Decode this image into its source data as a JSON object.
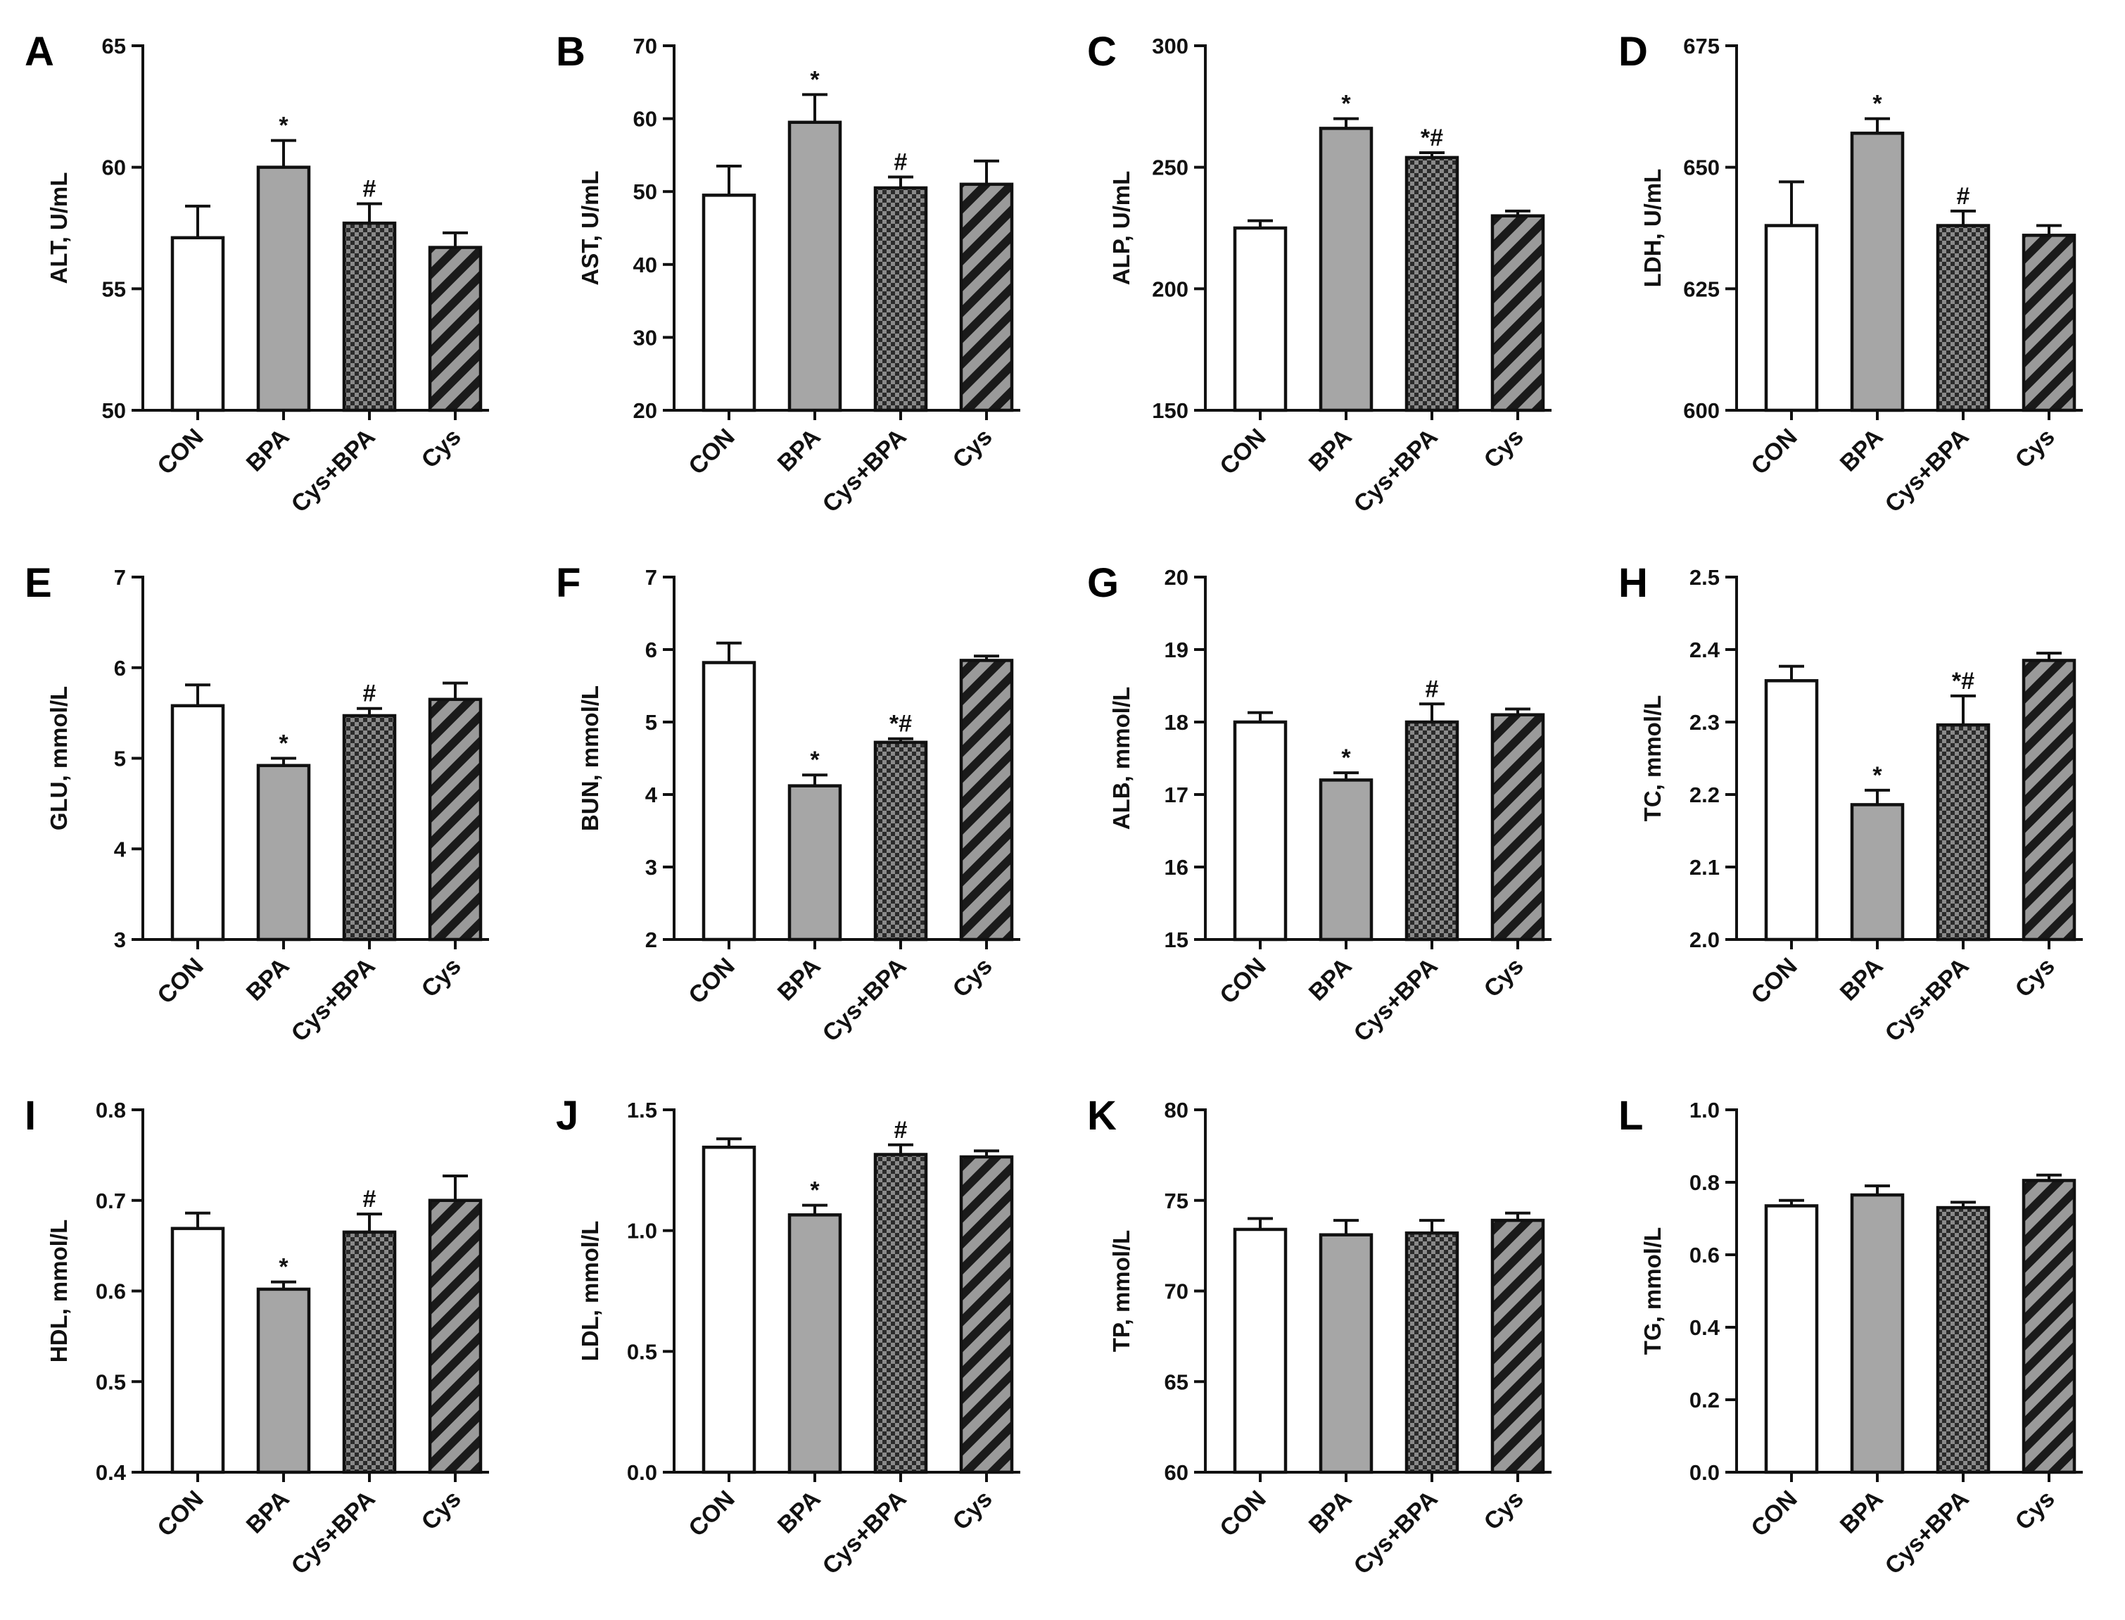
{
  "styles": {
    "CON": "white",
    "BPA": "gray",
    "Cys+BPA": "checker",
    "Cys": "hatch"
  },
  "colors": {
    "bar_gray": "#a6a6a6",
    "dark": "#1a1a1a",
    "checker_light": "#8a8a8a",
    "checker_dark": "#2b2b2b",
    "hatch_bg": "#9a9a9a",
    "hatch_line": "#1a1a1a"
  },
  "chart_data": [
    {
      "id": "A",
      "type": "bar",
      "letter": "A",
      "ylabel": "ALT, U/mL",
      "categories": [
        "CON",
        "BPA",
        "Cys+BPA",
        "Cys"
      ],
      "values": [
        57.1,
        60.0,
        57.7,
        56.7
      ],
      "errors": [
        1.3,
        1.1,
        0.8,
        0.6
      ],
      "sig": [
        "",
        "*",
        "#",
        ""
      ],
      "ylim": [
        50,
        65
      ],
      "yticks": [
        "50",
        "55",
        "60",
        "65"
      ]
    },
    {
      "id": "B",
      "type": "bar",
      "letter": "B",
      "ylabel": "AST, U/mL",
      "categories": [
        "CON",
        "BPA",
        "Cys+BPA",
        "Cys"
      ],
      "values": [
        49.5,
        59.5,
        50.5,
        51.0
      ],
      "errors": [
        4.0,
        3.8,
        1.5,
        3.2
      ],
      "sig": [
        "",
        "*",
        "#",
        ""
      ],
      "ylim": [
        20,
        70
      ],
      "yticks": [
        "20",
        "30",
        "40",
        "50",
        "60",
        "70"
      ]
    },
    {
      "id": "C",
      "type": "bar",
      "letter": "C",
      "ylabel": "ALP, U/mL",
      "categories": [
        "CON",
        "BPA",
        "Cys+BPA",
        "Cys"
      ],
      "values": [
        225,
        266,
        254,
        230
      ],
      "errors": [
        3,
        4,
        2,
        2
      ],
      "sig": [
        "",
        "*",
        "*#",
        ""
      ],
      "ylim": [
        150,
        300
      ],
      "yticks": [
        "150",
        "200",
        "250",
        "300"
      ]
    },
    {
      "id": "D",
      "type": "bar",
      "letter": "D",
      "ylabel": "LDH, U/mL",
      "categories": [
        "CON",
        "BPA",
        "Cys+BPA",
        "Cys"
      ],
      "values": [
        638,
        657,
        638,
        636
      ],
      "errors": [
        9,
        3,
        3,
        2
      ],
      "sig": [
        "",
        "*",
        "#",
        ""
      ],
      "ylim": [
        600,
        675
      ],
      "yticks": [
        "600",
        "625",
        "650",
        "675"
      ]
    },
    {
      "id": "E",
      "type": "bar",
      "letter": "E",
      "ylabel": "GLU, mmol/L",
      "categories": [
        "CON",
        "BPA",
        "Cys+BPA",
        "Cys"
      ],
      "values": [
        5.58,
        4.92,
        5.47,
        5.65
      ],
      "errors": [
        0.23,
        0.08,
        0.08,
        0.18
      ],
      "sig": [
        "",
        "*",
        "#",
        ""
      ],
      "ylim": [
        3,
        7
      ],
      "yticks": [
        "3",
        "4",
        "5",
        "6",
        "7"
      ]
    },
    {
      "id": "F",
      "type": "bar",
      "letter": "F",
      "ylabel": "BUN, mmol/L",
      "categories": [
        "CON",
        "BPA",
        "Cys+BPA",
        "Cys"
      ],
      "values": [
        5.82,
        4.12,
        4.72,
        5.85
      ],
      "errors": [
        0.27,
        0.15,
        0.05,
        0.06
      ],
      "sig": [
        "",
        "*",
        "*#",
        ""
      ],
      "ylim": [
        2,
        7
      ],
      "yticks": [
        "2",
        "3",
        "4",
        "5",
        "6",
        "7"
      ]
    },
    {
      "id": "G",
      "type": "bar",
      "letter": "G",
      "ylabel": "ALB, mmol/L",
      "categories": [
        "CON",
        "BPA",
        "Cys+BPA",
        "Cys"
      ],
      "values": [
        18.0,
        17.2,
        18.0,
        18.1
      ],
      "errors": [
        0.13,
        0.1,
        0.25,
        0.08
      ],
      "sig": [
        "",
        "*",
        "#",
        ""
      ],
      "ylim": [
        15,
        20
      ],
      "yticks": [
        "15",
        "16",
        "17",
        "18",
        "19",
        "20"
      ]
    },
    {
      "id": "H",
      "type": "bar",
      "letter": "H",
      "ylabel": "TC, mmol/L",
      "categories": [
        "CON",
        "BPA",
        "Cys+BPA",
        "Cys"
      ],
      "values": [
        2.357,
        2.186,
        2.296,
        2.385
      ],
      "errors": [
        0.02,
        0.02,
        0.04,
        0.01
      ],
      "sig": [
        "",
        "*",
        "*#",
        ""
      ],
      "ylim": [
        2.0,
        2.5
      ],
      "yticks": [
        "2.0",
        "2.1",
        "2.2",
        "2.3",
        "2.4",
        "2.5"
      ]
    },
    {
      "id": "I",
      "type": "bar",
      "letter": "I",
      "ylabel": "HDL, mmol/L",
      "categories": [
        "CON",
        "BPA",
        "Cys+BPA",
        "Cys"
      ],
      "values": [
        0.669,
        0.602,
        0.665,
        0.7
      ],
      "errors": [
        0.017,
        0.008,
        0.02,
        0.027
      ],
      "sig": [
        "",
        "*",
        "#",
        ""
      ],
      "ylim": [
        0.4,
        0.8
      ],
      "yticks": [
        "0.4",
        "0.5",
        "0.6",
        "0.7",
        "0.8"
      ]
    },
    {
      "id": "J",
      "type": "bar",
      "letter": "J",
      "ylabel": "LDL, mmol/L",
      "categories": [
        "CON",
        "BPA",
        "Cys+BPA",
        "Cys"
      ],
      "values": [
        1.345,
        1.065,
        1.315,
        1.305
      ],
      "errors": [
        0.035,
        0.04,
        0.04,
        0.025
      ],
      "sig": [
        "",
        "*",
        "#",
        ""
      ],
      "ylim": [
        0.0,
        1.5
      ],
      "yticks": [
        "0.0",
        "0.5",
        "1.0",
        "1.5"
      ]
    },
    {
      "id": "K",
      "type": "bar",
      "letter": "K",
      "ylabel": "TP, mmol/L",
      "categories": [
        "CON",
        "BPA",
        "Cys+BPA",
        "Cys"
      ],
      "values": [
        73.4,
        73.1,
        73.2,
        73.9
      ],
      "errors": [
        0.6,
        0.8,
        0.7,
        0.4
      ],
      "sig": [
        "",
        "",
        "",
        ""
      ],
      "ylim": [
        60,
        80
      ],
      "yticks": [
        "60",
        "65",
        "70",
        "75",
        "80"
      ]
    },
    {
      "id": "L",
      "type": "bar",
      "letter": "L",
      "ylabel": "TG, mmol/L",
      "categories": [
        "CON",
        "BPA",
        "Cys+BPA",
        "Cys"
      ],
      "values": [
        0.735,
        0.765,
        0.73,
        0.805
      ],
      "errors": [
        0.015,
        0.025,
        0.015,
        0.015
      ],
      "sig": [
        "",
        "",
        "",
        ""
      ],
      "ylim": [
        0.0,
        1.0
      ],
      "yticks": [
        "0.0",
        "0.2",
        "0.4",
        "0.6",
        "0.8",
        "1.0"
      ]
    }
  ]
}
